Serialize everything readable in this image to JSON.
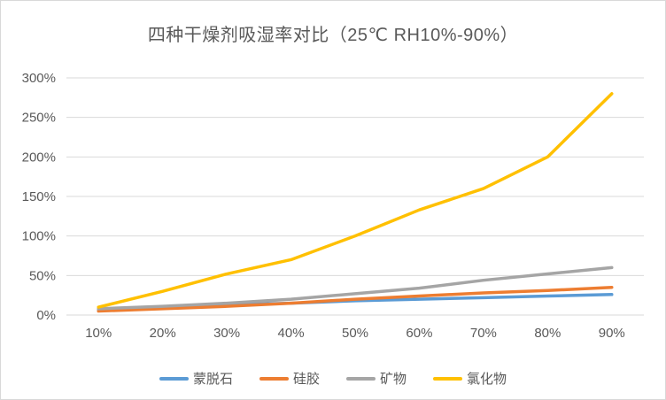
{
  "chart": {
    "title": "四种干燥剂吸湿率对比（25℃ RH10%-90%）"
  },
  "chart_data": {
    "type": "line",
    "title": "四种干燥剂吸湿率对比（25℃ RH10%-90%）",
    "categories": [
      "10%",
      "20%",
      "30%",
      "40%",
      "50%",
      "60%",
      "70%",
      "80%",
      "90%"
    ],
    "series": [
      {
        "name": "蒙脱石",
        "color": "#5B9BD5",
        "values": [
          7,
          10,
          13,
          15,
          18,
          20,
          22,
          24,
          26
        ]
      },
      {
        "name": "硅胶",
        "color": "#ED7D31",
        "values": [
          5,
          8,
          11,
          15,
          20,
          24,
          28,
          31,
          35
        ]
      },
      {
        "name": "矿物",
        "color": "#A5A5A5",
        "values": [
          8,
          11,
          15,
          20,
          27,
          34,
          44,
          52,
          60
        ]
      },
      {
        "name": "氯化物",
        "color": "#FFC000",
        "values": [
          10,
          30,
          52,
          70,
          100,
          133,
          160,
          200,
          280
        ]
      }
    ],
    "xlabel": "",
    "ylabel": "",
    "ylim": [
      0,
      300
    ],
    "ytick_step": 50,
    "yticks": [
      0,
      50,
      100,
      150,
      200,
      250,
      300
    ],
    "ytick_labels": [
      "0%",
      "50%",
      "100%",
      "150%",
      "200%",
      "250%",
      "300%"
    ],
    "grid": true,
    "legend_position": "bottom",
    "colors": {
      "grid": "#d9d9d9",
      "text": "#595959",
      "background": "#ffffff"
    }
  }
}
